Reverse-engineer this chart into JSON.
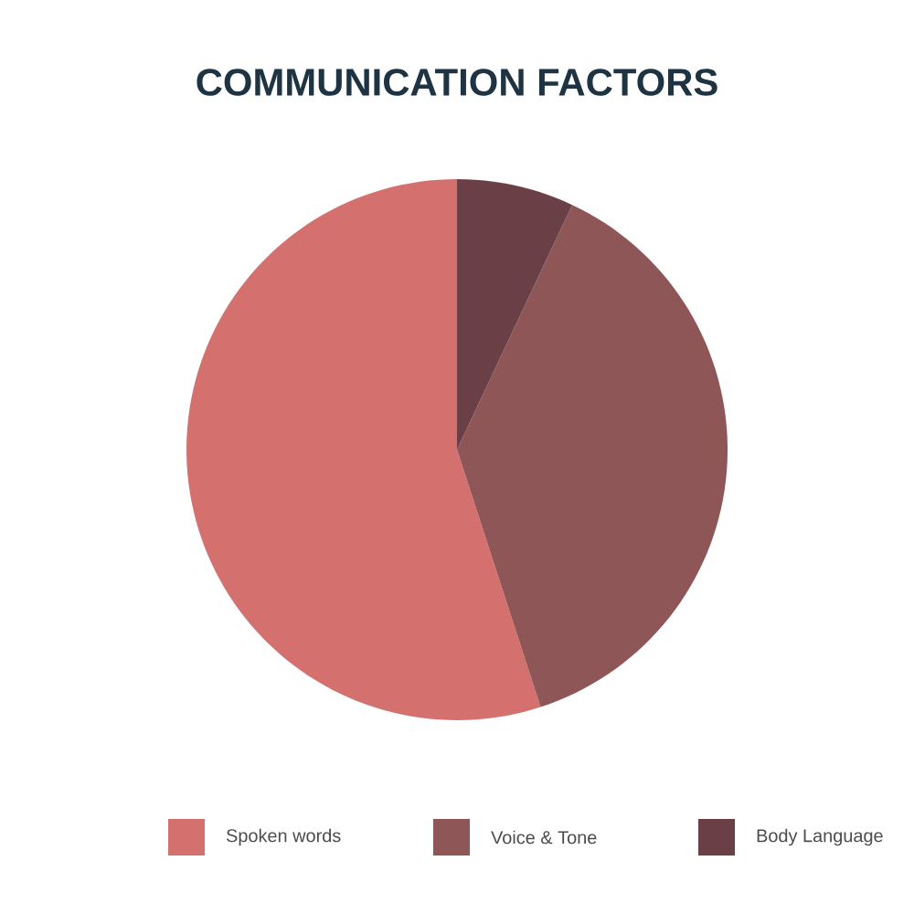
{
  "chart_data": {
    "type": "pie",
    "title": "COMMUNICATION FACTORS",
    "categories": [
      "Spoken words",
      "Voice & Tone",
      "Body Language"
    ],
    "values": [
      55,
      38,
      7
    ],
    "colors": [
      "#d4716f",
      "#8e5656",
      "#6a4046"
    ],
    "legend": "bottom"
  }
}
